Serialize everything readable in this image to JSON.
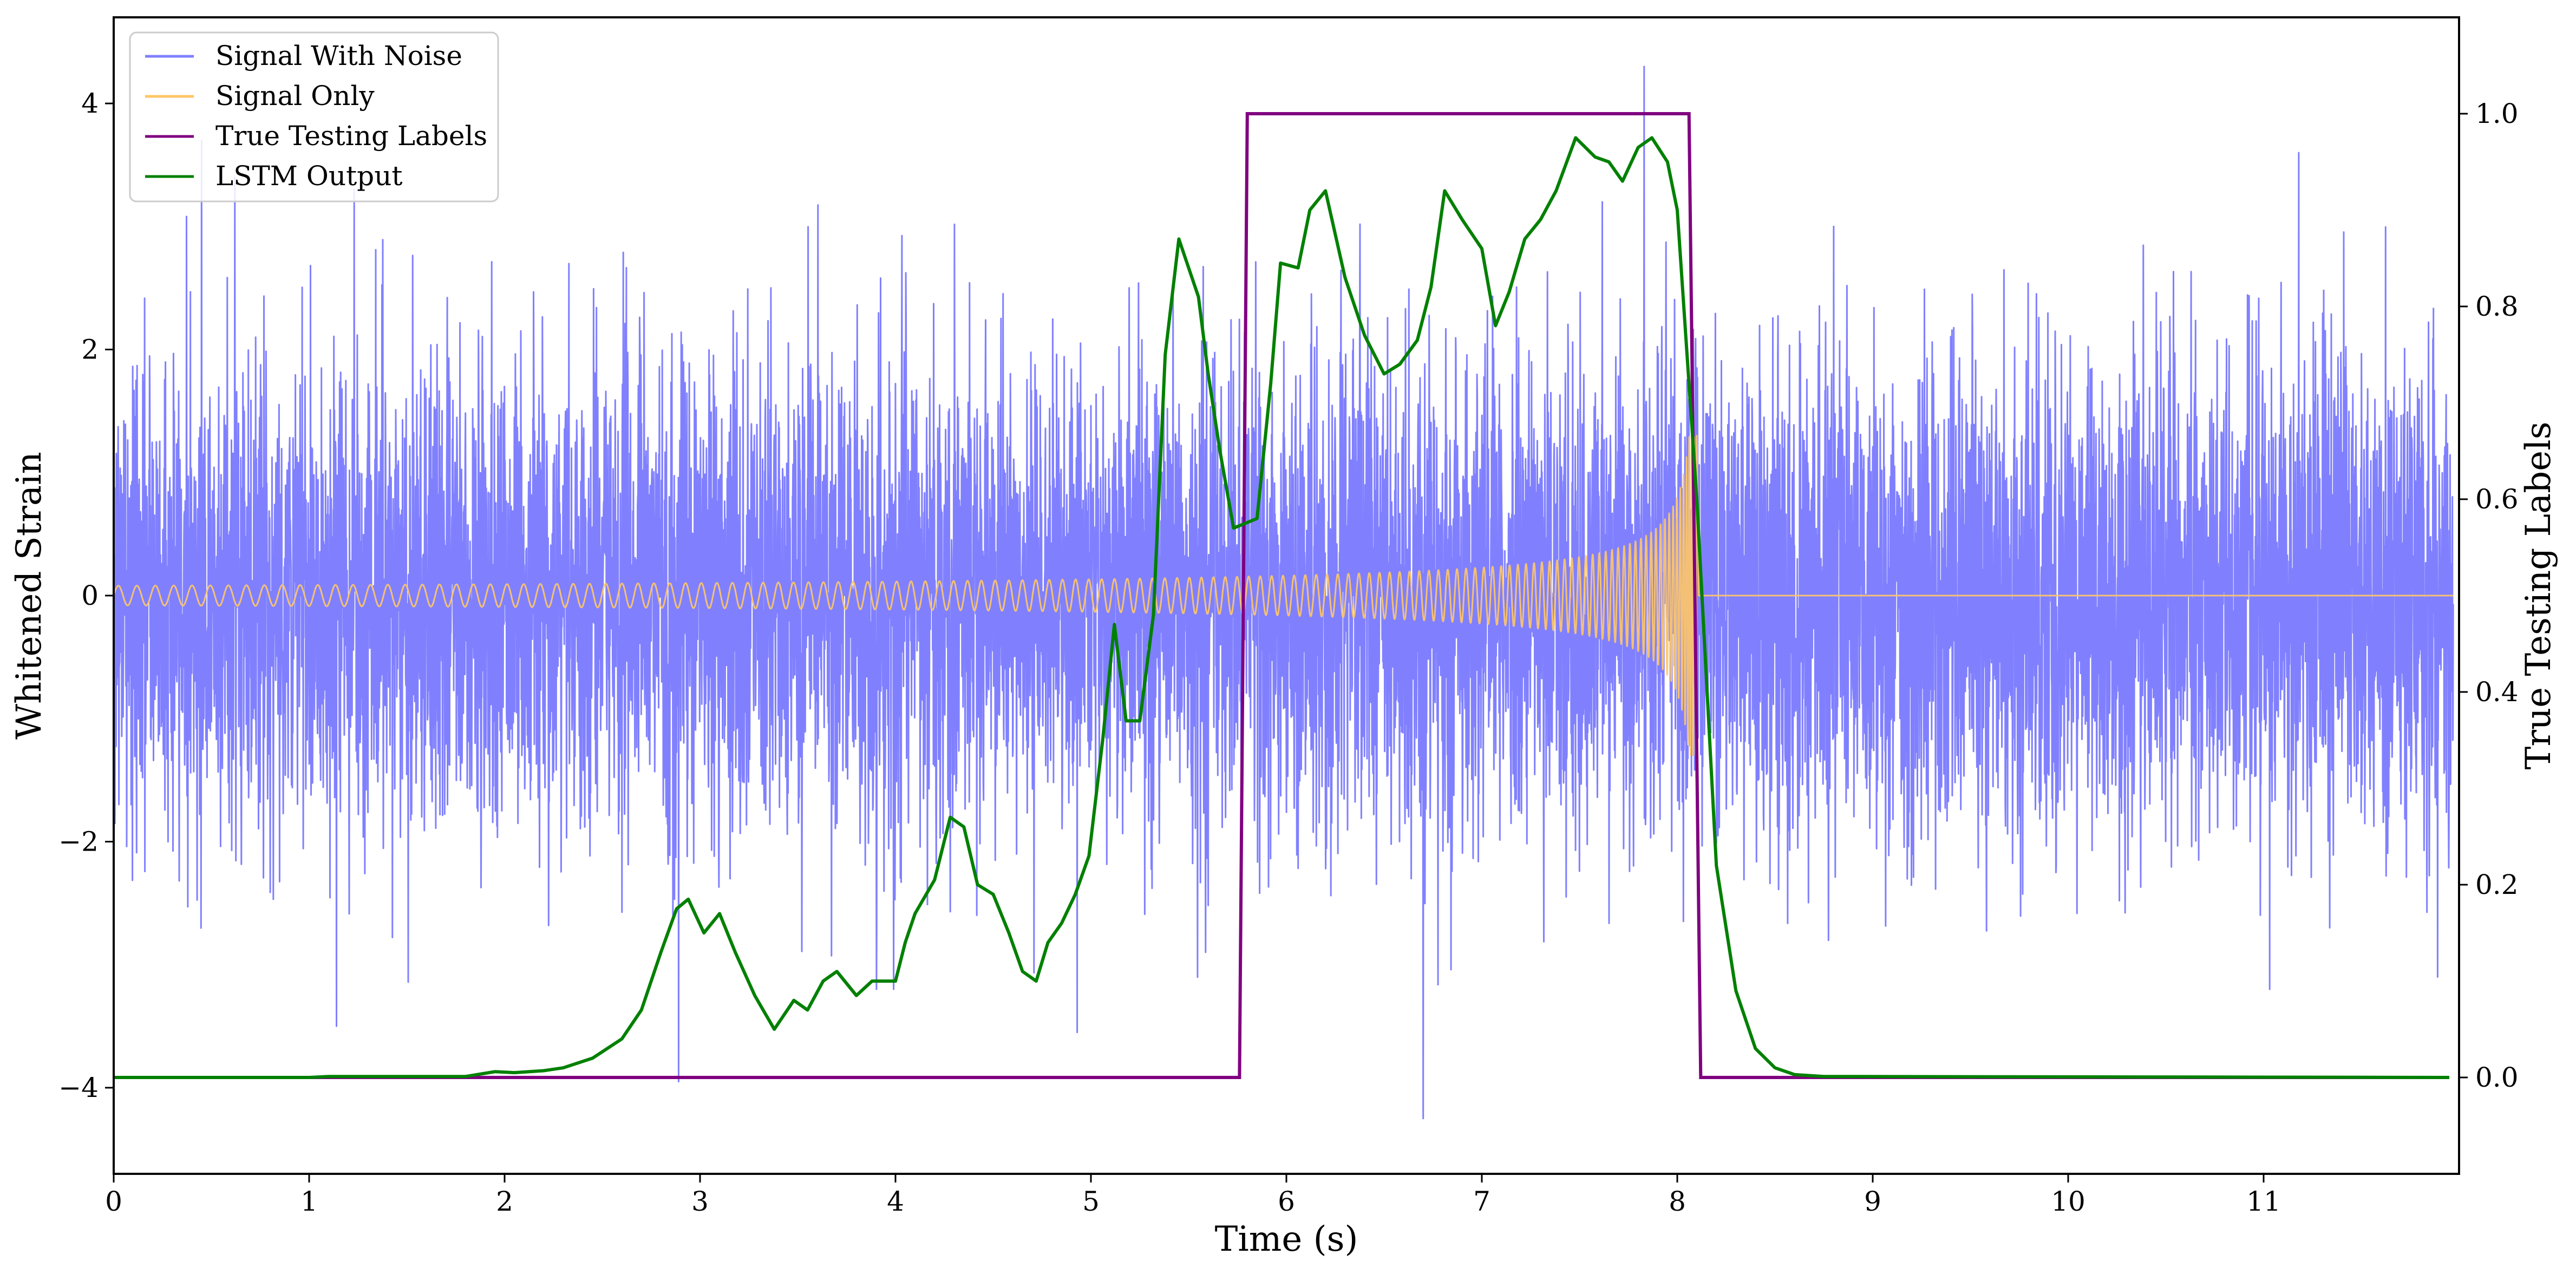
{
  "chart_data": {
    "type": "line",
    "xlabel": "Time (s)",
    "ylabel": "Whitened Strain",
    "y2label": "True Testing Labels",
    "xlim": [
      0,
      12
    ],
    "ylim": [
      -4.7,
      4.7
    ],
    "y2lim": [
      -0.1,
      1.1
    ],
    "xticks": [
      0,
      1,
      2,
      3,
      4,
      5,
      6,
      7,
      8,
      9,
      10,
      11
    ],
    "xtick_labels": [
      "0",
      "1",
      "2",
      "3",
      "4",
      "5",
      "6",
      "7",
      "8",
      "9",
      "10",
      "11"
    ],
    "yticks": [
      -4,
      -2,
      0,
      2,
      4
    ],
    "ytick_labels": [
      "−4",
      "−2",
      "0",
      "2",
      "4"
    ],
    "y2ticks": [
      0.0,
      0.2,
      0.4,
      0.6,
      0.8,
      1.0
    ],
    "y2tick_labels": [
      "0.0",
      "0.2",
      "0.4",
      "0.6",
      "0.8",
      "1.0"
    ],
    "grid": false,
    "legend_position": "top-left",
    "series": [
      {
        "name": "Signal With Noise",
        "color": "#8080ff",
        "axis": "left",
        "kind": "noise",
        "typical_envelope": [
          -2.2,
          2.2
        ],
        "peaks": [
          {
            "x": 0.45,
            "y": 3.7
          },
          {
            "x": 0.62,
            "y": 3.4
          },
          {
            "x": 1.23,
            "y": 3.3
          },
          {
            "x": 2.89,
            "y": -3.95
          },
          {
            "x": 4.93,
            "y": -3.55
          },
          {
            "x": 7.83,
            "y": 4.3
          },
          {
            "x": 6.7,
            "y": -4.25
          },
          {
            "x": 11.18,
            "y": 3.6
          },
          {
            "x": 1.14,
            "y": -3.5
          },
          {
            "x": 8.8,
            "y": 3.0
          },
          {
            "x": 11.89,
            "y": -3.1
          }
        ]
      },
      {
        "name": "Signal Only",
        "color": "#ffc766",
        "axis": "left",
        "kind": "chirp",
        "t_start": 0,
        "t_merge": 8.1,
        "amplitude_start": 0.08,
        "amplitude_peak": 1.3,
        "post_merge_value": 0
      },
      {
        "name": "True Testing Labels",
        "color": "#800080",
        "axis": "right",
        "x": [
          0,
          5.76,
          5.8,
          8.06,
          8.12,
          11.95
        ],
        "y": [
          0,
          0,
          1,
          1,
          0,
          0
        ]
      },
      {
        "name": "LSTM Output",
        "color": "#008000",
        "axis": "right",
        "x": [
          0,
          1.0,
          1.1,
          1.8,
          1.95,
          2.05,
          2.2,
          2.3,
          2.45,
          2.6,
          2.7,
          2.8,
          2.88,
          2.94,
          3.02,
          3.1,
          3.18,
          3.28,
          3.38,
          3.48,
          3.55,
          3.63,
          3.7,
          3.8,
          3.88,
          4.0,
          4.05,
          4.1,
          4.2,
          4.28,
          4.35,
          4.42,
          4.5,
          4.58,
          4.65,
          4.72,
          4.78,
          4.85,
          4.92,
          4.99,
          5.06,
          5.12,
          5.18,
          5.25,
          5.32,
          5.38,
          5.45,
          5.55,
          5.6,
          5.66,
          5.73,
          5.85,
          5.92,
          5.97,
          6.06,
          6.12,
          6.2,
          6.3,
          6.4,
          6.5,
          6.58,
          6.67,
          6.74,
          6.81,
          6.9,
          7.0,
          7.07,
          7.14,
          7.22,
          7.3,
          7.38,
          7.48,
          7.58,
          7.65,
          7.72,
          7.8,
          7.87,
          7.95,
          8.0,
          8.1,
          8.2,
          8.3,
          8.4,
          8.5,
          8.6,
          8.75,
          11.95
        ],
        "y": [
          0,
          0,
          0.001,
          0.001,
          0.006,
          0.005,
          0.007,
          0.01,
          0.02,
          0.04,
          0.07,
          0.13,
          0.175,
          0.185,
          0.15,
          0.17,
          0.13,
          0.085,
          0.05,
          0.08,
          0.07,
          0.1,
          0.11,
          0.085,
          0.1,
          0.1,
          0.14,
          0.17,
          0.205,
          0.27,
          0.26,
          0.2,
          0.19,
          0.15,
          0.11,
          0.1,
          0.14,
          0.16,
          0.19,
          0.23,
          0.35,
          0.47,
          0.37,
          0.37,
          0.48,
          0.75,
          0.87,
          0.81,
          0.73,
          0.65,
          0.57,
          0.58,
          0.72,
          0.845,
          0.84,
          0.9,
          0.92,
          0.83,
          0.77,
          0.73,
          0.74,
          0.765,
          0.82,
          0.92,
          0.89,
          0.86,
          0.78,
          0.815,
          0.87,
          0.89,
          0.92,
          0.975,
          0.955,
          0.95,
          0.93,
          0.965,
          0.975,
          0.95,
          0.9,
          0.6,
          0.22,
          0.09,
          0.03,
          0.01,
          0.003,
          0.001,
          0.0
        ]
      }
    ]
  }
}
